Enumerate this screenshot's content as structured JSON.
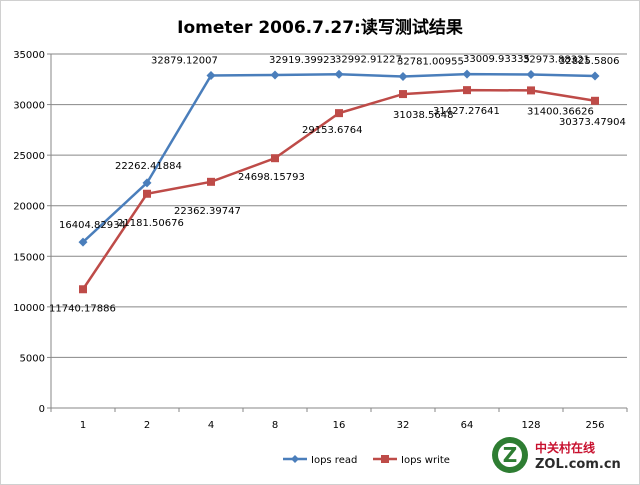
{
  "chart_data": {
    "type": "line",
    "title": "Iometer 2006.7.27:读写测试结果",
    "xlabel": "",
    "ylabel": "",
    "categories": [
      "1",
      "2",
      "4",
      "8",
      "16",
      "32",
      "64",
      "128",
      "256"
    ],
    "ylim": [
      0,
      35000
    ],
    "yticks": [
      0,
      5000,
      10000,
      15000,
      20000,
      25000,
      30000,
      35000
    ],
    "grid": true,
    "legend": "bottom",
    "series": [
      {
        "name": "Iops read",
        "color": "#4a7ebb",
        "marker": "diamond",
        "values": [
          16404.82934,
          22262.41884,
          32879.12007,
          32919.39923,
          32992.91227,
          32781.00955,
          33009.93335,
          32973.88321,
          32825.5806
        ],
        "labels": [
          "16404.82934",
          "22262.41884",
          "32879.12007",
          "32919.39923",
          "32992.91227",
          "32781.00955",
          "33009.93335",
          "32973.88321",
          "32825.5806"
        ]
      },
      {
        "name": "Iops write",
        "color": "#be4b48",
        "marker": "square",
        "values": [
          11740.17886,
          21181.50676,
          22362.39747,
          24698.15793,
          29153.6764,
          31038.5648,
          31427.27641,
          31400.36626,
          30373.47904
        ],
        "labels": [
          "11740.17886",
          "21181.50676",
          "22362.39747",
          "24698.15793",
          "29153.6764",
          "31038.5648",
          "31427.27641",
          "31400.36626",
          "30373.47904"
        ]
      }
    ]
  },
  "watermark": {
    "cn": "中关村在线",
    "en": "ZOL.com.cn",
    "logo_letter": "Z"
  }
}
